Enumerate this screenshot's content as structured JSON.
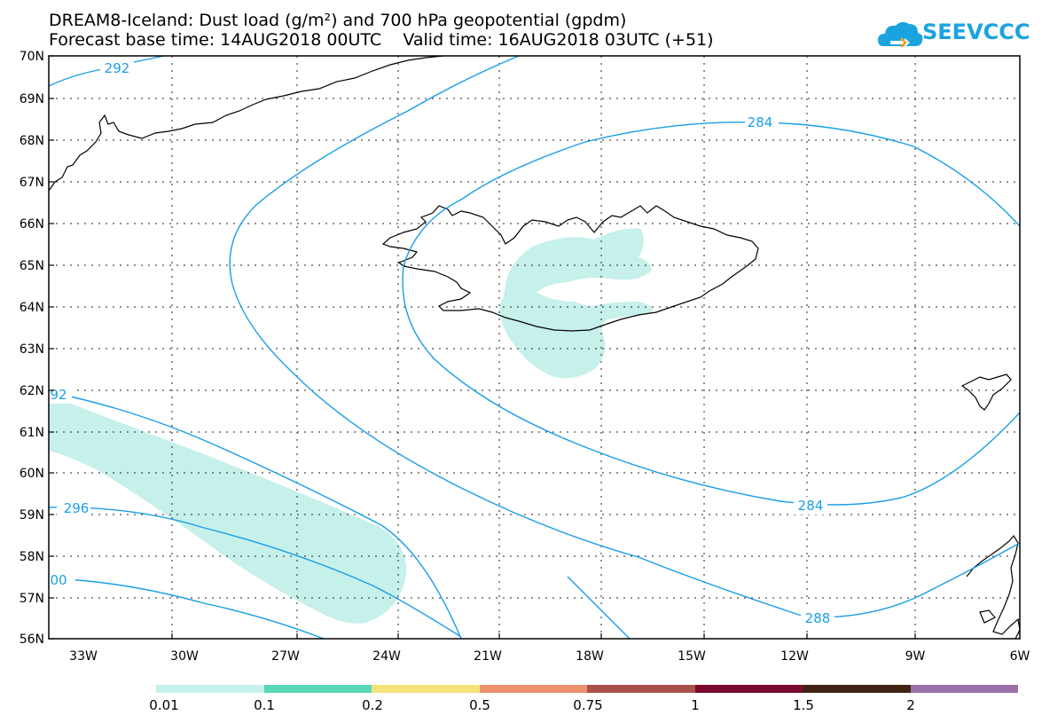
{
  "title_line1": "DREAM8-Iceland: Dust load (g/m²) and 700 hPa geopotential (gpdm)",
  "title_line2_base": "Forecast base time: 14AUG2018 00UTC",
  "title_line2_valid": "Valid time: 16AUG2018 03UTC (+51)",
  "logo_text": "SEEVCCC",
  "colors": {
    "logo": "#1ba3e0",
    "contour": "#1a9ee8",
    "dust_low": "#c6f0ea",
    "coast": "#000000"
  },
  "lat_labels": [
    "70N",
    "69N",
    "68N",
    "67N",
    "66N",
    "65N",
    "64N",
    "63N",
    "62N",
    "61N",
    "60N",
    "59N",
    "58N",
    "57N",
    "56N"
  ],
  "lon_labels": [
    "33W",
    "30W",
    "27W",
    "24W",
    "21W",
    "18W",
    "15W",
    "12W",
    "9W",
    "6W"
  ],
  "contour_labels": {
    "c292_top": "292",
    "c292_left": "92",
    "c296": "296",
    "c300": "00",
    "c284_top": "284",
    "c284_bottom": "284",
    "c288": "288"
  },
  "colorbar": {
    "labels": [
      "0.01",
      "0.1",
      "0.2",
      "0.5",
      "0.75",
      "1",
      "1.5",
      "2"
    ],
    "colors": [
      "#c6f0ea",
      "#5ad7b4",
      "#f5e27a",
      "#ec9070",
      "#a8524a",
      "#7a0a2e",
      "#3e2414",
      "#9a70a8"
    ]
  }
}
